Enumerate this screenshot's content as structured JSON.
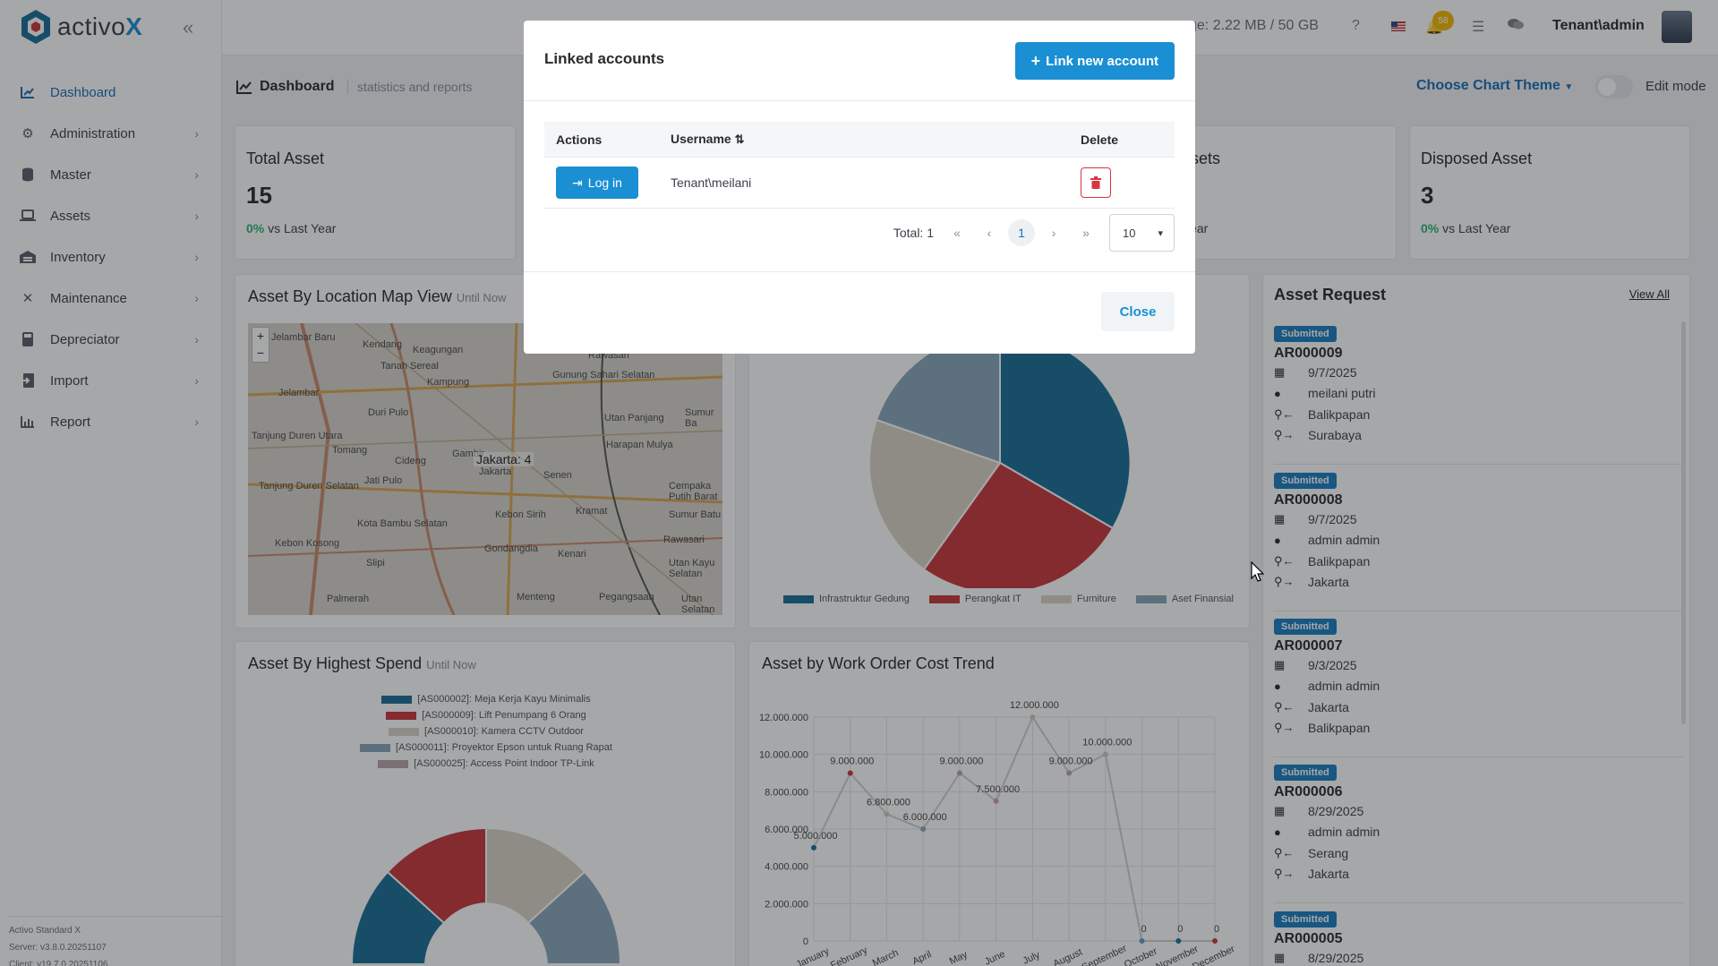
{
  "app": {
    "logo_text": "activo",
    "logo_x": "X"
  },
  "sidebar": {
    "items": [
      {
        "label": "Dashboard",
        "icon": "chart-icon"
      },
      {
        "label": "Administration",
        "icon": "gears-icon"
      },
      {
        "label": "Master",
        "icon": "database-icon"
      },
      {
        "label": "Assets",
        "icon": "laptop-icon"
      },
      {
        "label": "Inventory",
        "icon": "warehouse-icon"
      },
      {
        "label": "Maintenance",
        "icon": "tools-icon"
      },
      {
        "label": "Depreciator",
        "icon": "calculator-icon"
      },
      {
        "label": "Import",
        "icon": "import-icon"
      },
      {
        "label": "Report",
        "icon": "report-chart-icon"
      }
    ],
    "version_lines": [
      "Activo Standard X",
      "Server: v3.8.0.20251107",
      "Client: v19.7.0.20251106"
    ]
  },
  "topbar": {
    "storage": "ge: 2.22 MB / 50 GB",
    "notif_count": "58",
    "user": "Tenant\\admin"
  },
  "page": {
    "title": "Dashboard",
    "subtitle": "statistics and reports",
    "theme_button": "Choose Chart Theme",
    "edit_mode": "Edit mode"
  },
  "stats": {
    "total": {
      "title": "Total Asset",
      "value": "15",
      "pct": "0%",
      "foot": "vs Last Year"
    },
    "assets_partial": {
      "title": "ssets",
      "foot": "Year"
    },
    "disposed": {
      "title": "Disposed Asset",
      "value": "3",
      "pct": "0%",
      "foot": "vs Last Year"
    }
  },
  "map_card": {
    "title": "Asset By Location Map View",
    "sub": "Until Now",
    "marker": "Jakarta: 4",
    "labels": [
      "Jelambar Baru",
      "Kendang",
      "Keagungan",
      "Gunung Sahari Selatan",
      "Tanah Sereal",
      "Kampung",
      "Rawasari",
      "Jelambar",
      "Duri Pulo",
      "Utan Panjang",
      "Sumur Ba",
      "Tanjung Duren Utara",
      "Tomang",
      "Cideng",
      "Gambir",
      "Harapan Mulya",
      "Tanjung Duren Selatan",
      "Jati Pulo",
      "Senen",
      "Cempaka Putih Barat",
      "Kota Bambu Selatan",
      "Kebon Sirih",
      "Kramat",
      "Rawasari",
      "Slipi",
      "Gondangdia",
      "Kenari",
      "Kebon Kosong",
      "Palmerah",
      "Menteng",
      "Pegangsaan",
      "Utan Kayu Selatan",
      "Utan Selatan",
      "Jakarta",
      "Sumur Batu"
    ]
  },
  "pie_card": {
    "legend": [
      {
        "label": "Infrastruktur Gedung",
        "color": "#1a6f97"
      },
      {
        "label": "Perangkat IT",
        "color": "#c9373d"
      },
      {
        "label": "Furniture",
        "color": "#d8d4c4"
      },
      {
        "label": "Aset Finansial",
        "color": "#8aa6b8"
      }
    ]
  },
  "spend_card": {
    "title": "Asset By Highest Spend",
    "sub": "Until Now",
    "legend": [
      {
        "label": "[AS000002]: Meja Kerja Kayu Minimalis",
        "color": "#1a6f97"
      },
      {
        "label": "[AS000009]: Lift Penumpang 6 Orang",
        "color": "#c9373d"
      },
      {
        "label": "[AS000010]: Kamera CCTV Outdoor",
        "color": "#d8d4c4"
      },
      {
        "label": "[AS000011]: Proyektor Epson untuk Ruang Rapat",
        "color": "#8aa6b8"
      },
      {
        "label": "[AS000025]: Access Point Indoor TP-Link",
        "color": "#b9a5a6"
      }
    ]
  },
  "chart_data": {
    "type": "line",
    "title": "Asset by Work Order Cost Trend",
    "categories": [
      "January",
      "February",
      "March",
      "April",
      "May",
      "June",
      "July",
      "August",
      "September",
      "October",
      "November",
      "December"
    ],
    "series": [
      {
        "values": [
          5000000,
          9000000,
          6800000,
          6000000,
          9000000,
          7500000,
          12000000,
          9000000,
          10000000,
          0,
          0,
          0
        ]
      }
    ],
    "data_labels": [
      "5.000.000",
      "9.000.000",
      "6.800.000",
      "6.000.000",
      "9.000.000",
      "7.500.000",
      "12.000.000",
      "9.000.000",
      "10.000.000",
      "0",
      "0",
      "0"
    ],
    "y_ticks": [
      "0",
      "2.000.000",
      "4.000.000",
      "6.000.000",
      "8.000.000",
      "10.000.000",
      "12.000.000"
    ],
    "ylim": [
      0,
      12000000
    ],
    "grid": true
  },
  "asset_request": {
    "title": "Asset Request",
    "view_all": "View All",
    "items": [
      {
        "status": "Submitted",
        "code": "AR000009",
        "date": "9/7/2025",
        "user": "meilani putri",
        "from": "Balikpapan",
        "to": "Surabaya"
      },
      {
        "status": "Submitted",
        "code": "AR000008",
        "date": "9/7/2025",
        "user": "admin admin",
        "from": "Balikpapan",
        "to": "Jakarta"
      },
      {
        "status": "Submitted",
        "code": "AR000007",
        "date": "9/3/2025",
        "user": "admin admin",
        "from": "Jakarta",
        "to": "Balikpapan"
      },
      {
        "status": "Submitted",
        "code": "AR000006",
        "date": "8/29/2025",
        "user": "admin admin",
        "from": "Serang",
        "to": "Jakarta"
      },
      {
        "status": "Submitted",
        "code": "AR000005",
        "date": "8/29/2025"
      }
    ]
  },
  "modal": {
    "title": "Linked accounts",
    "link_new": "Link new account",
    "col_actions": "Actions",
    "col_username": "Username",
    "col_delete": "Delete",
    "rows": [
      {
        "login": "Log in",
        "username": "Tenant\\meilani"
      }
    ],
    "total": "Total: 1",
    "page": "1",
    "page_size": "10",
    "close": "Close"
  }
}
